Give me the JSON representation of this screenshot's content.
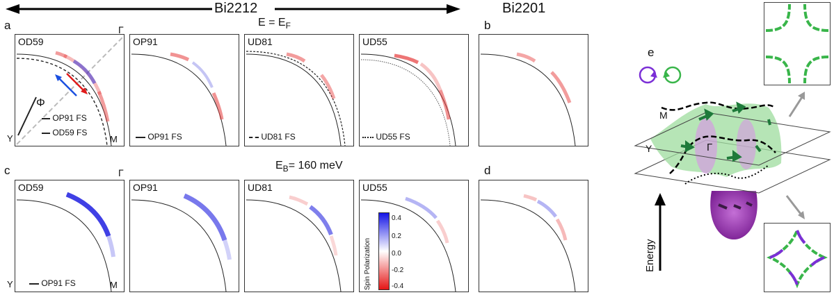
{
  "header": {
    "bi2212": "Bi2212",
    "bi2201": "Bi2201",
    "energy_row1_main": "E = E",
    "energy_row1_sub": "F",
    "energy_row2_main": "E",
    "energy_row2_sub": "B",
    "energy_row2_value": "= 160 meV"
  },
  "letters": {
    "a": "a",
    "b": "b",
    "c": "c",
    "d": "d",
    "e": "e"
  },
  "row1": {
    "panels": [
      "OD59",
      "OP91",
      "UD81",
      "UD55"
    ],
    "legends": {
      "od59_op91": "OP91 FS",
      "od59_od59": "OD59 FS",
      "op91": "OP91 FS",
      "ud81": "UD81 FS",
      "ud55": "UD55 FS"
    },
    "symbols": {
      "gamma": "Γ",
      "y": "Y",
      "m": "M",
      "phi": "Φ"
    }
  },
  "row2": {
    "panels": [
      "OD59",
      "OP91",
      "UD81",
      "UD55"
    ],
    "legend": "OP91 FS",
    "symbols": {
      "gamma": "Γ",
      "y": "Y",
      "m": "M"
    }
  },
  "colorbar": {
    "label": "Spin Polarization",
    "ticks": [
      "0.4",
      "0.2",
      "0.0",
      "-0.2",
      "-0.4"
    ],
    "colors": {
      "positive": "#1515e6",
      "zero": "#ffffff",
      "negative": "#e61515"
    }
  },
  "schematic": {
    "labels": {
      "m": "M",
      "y": "Y",
      "gamma": "Γ",
      "energy": "Energy"
    },
    "colors": {
      "green": "#39b54a",
      "purple": "#8a2aa6",
      "arrow": "#1e7a3a"
    }
  }
}
